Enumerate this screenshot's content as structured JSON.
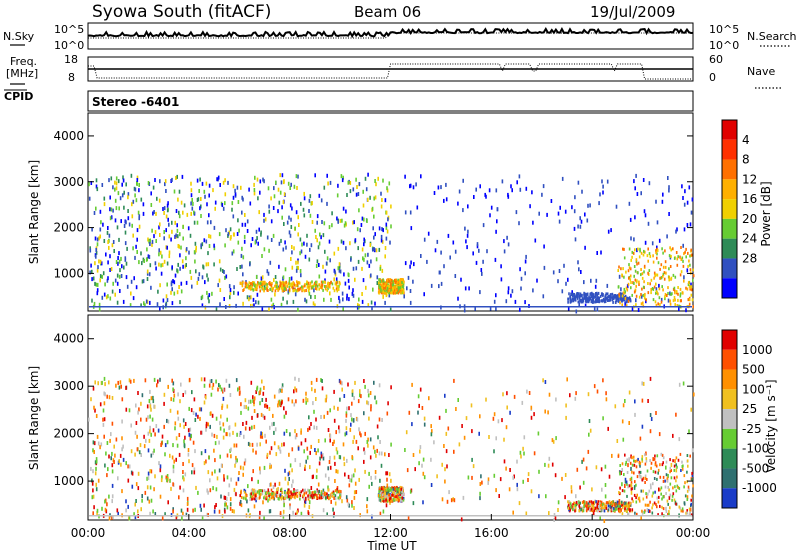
{
  "header": {
    "station": "Syowa South (fitACF)",
    "beam": "Beam 06",
    "date": "19/Jul/2009"
  },
  "top_panel": {
    "left_label": "N.Sky",
    "right_label": "N.Search",
    "left_ticks": [
      "10^5",
      "10^0"
    ],
    "right_ticks": [
      "10^5",
      "10^0"
    ]
  },
  "freq_panel": {
    "left_label_1": "Freq.",
    "left_label_2": "[MHz]",
    "left_ticks": [
      "18",
      "8"
    ],
    "right_label": "Nave",
    "right_ticks": [
      "60",
      "0"
    ],
    "cpid_label": "CPID",
    "cpid_value": "Stereo -6401"
  },
  "chart_data": [
    {
      "type": "heatmap",
      "title": "",
      "xlabel": "Time UT",
      "ylabel": "Slant Range [km]",
      "x_ticks": [
        "00:00",
        "04:00",
        "08:00",
        "12:00",
        "16:00",
        "20:00",
        "00:00"
      ],
      "y_ticks": [
        "1000",
        "2000",
        "3000",
        "4000"
      ],
      "ylim": [
        180,
        4500
      ],
      "xlim_hours": [
        0,
        24
      ],
      "colorbar": {
        "label": "Power [dB]",
        "ticks": [
          "4",
          "8",
          "12",
          "16",
          "20",
          "24",
          "28"
        ],
        "colors": [
          "#0000ff",
          "#3050c0",
          "#2e8b57",
          "#66cc33",
          "#f0d000",
          "#ffb000",
          "#ff7000",
          "#ff3000",
          "#e00000"
        ]
      },
      "echo_regions_km_hours": [
        {
          "t0": 0,
          "t1": 12,
          "r0": 250,
          "r1": 3200,
          "density": "scattered"
        },
        {
          "t0": 6,
          "t1": 10,
          "r0": 650,
          "r1": 850,
          "density": "dense"
        },
        {
          "t0": 11.5,
          "t1": 12.5,
          "r0": 600,
          "r1": 900,
          "density": "dense"
        },
        {
          "t0": 12.5,
          "t1": 24,
          "r0": 200,
          "r1": 3200,
          "density": "sparse"
        },
        {
          "t0": 19,
          "t1": 21.5,
          "r0": 400,
          "r1": 600,
          "density": "dense"
        },
        {
          "t0": 21,
          "t1": 24,
          "r0": 300,
          "r1": 1600,
          "density": "dense"
        }
      ]
    },
    {
      "type": "heatmap",
      "title": "",
      "xlabel": "Time UT",
      "ylabel": "Slant Range [km]",
      "x_ticks": [
        "00:00",
        "04:00",
        "08:00",
        "12:00",
        "16:00",
        "20:00",
        "00:00"
      ],
      "y_ticks": [
        "1000",
        "2000",
        "3000",
        "4000"
      ],
      "ylim": [
        180,
        4500
      ],
      "xlim_hours": [
        0,
        24
      ],
      "colorbar": {
        "label": "Velocity [m s⁻¹]",
        "ticks": [
          "1000",
          "500",
          "100",
          "25",
          "-25",
          "-100",
          "-500",
          "-1000"
        ],
        "colors": [
          "#1a3cc8",
          "#2f7070",
          "#2e8b57",
          "#66cc33",
          "#c0c0c0",
          "#f0c020",
          "#ff9000",
          "#ff5000",
          "#e00000"
        ]
      }
    }
  ]
}
